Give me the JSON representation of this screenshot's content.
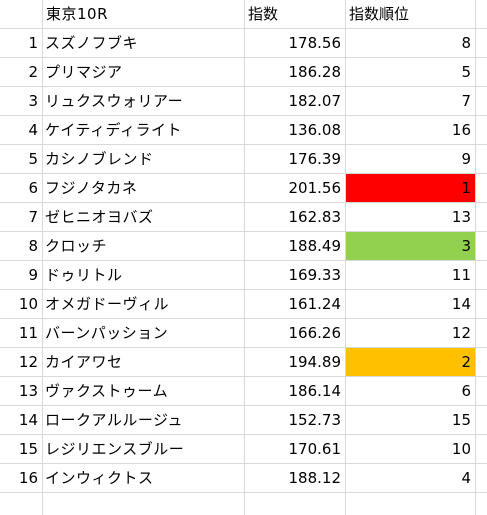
{
  "header": {
    "a": "",
    "b": "東京10R",
    "c": "指数",
    "d": "指数順位"
  },
  "highlight_colors": {
    "rank_1": "#ff0000",
    "rank_2": "#ffc000",
    "rank_3": "#92d050"
  },
  "rows": [
    {
      "no": "1",
      "name": "スズノフブキ",
      "index": "178.56",
      "rank": "8"
    },
    {
      "no": "2",
      "name": "プリマジア",
      "index": "186.28",
      "rank": "5"
    },
    {
      "no": "3",
      "name": "リュクスウォリアー",
      "index": "182.07",
      "rank": "7"
    },
    {
      "no": "4",
      "name": "ケイティディライト",
      "index": "136.08",
      "rank": "16"
    },
    {
      "no": "5",
      "name": "カシノブレンド",
      "index": "176.39",
      "rank": "9"
    },
    {
      "no": "6",
      "name": "フジノタカネ",
      "index": "201.56",
      "rank": "1",
      "fill": "#ff0000"
    },
    {
      "no": "7",
      "name": "ゼヒニオヨバズ",
      "index": "162.83",
      "rank": "13"
    },
    {
      "no": "8",
      "name": "クロッチ",
      "index": "188.49",
      "rank": "3",
      "fill": "#92d050"
    },
    {
      "no": "9",
      "name": "ドゥリトル",
      "index": "169.33",
      "rank": "11"
    },
    {
      "no": "10",
      "name": "オメガドーヴィル",
      "index": "161.24",
      "rank": "14"
    },
    {
      "no": "11",
      "name": "バーンパッション",
      "index": "166.26",
      "rank": "12"
    },
    {
      "no": "12",
      "name": "カイアワセ",
      "index": "194.89",
      "rank": "2",
      "fill": "#ffc000"
    },
    {
      "no": "13",
      "name": "ヴァクストゥーム",
      "index": "186.14",
      "rank": "6"
    },
    {
      "no": "14",
      "name": "ロークアルルージュ",
      "index": "152.73",
      "rank": "15"
    },
    {
      "no": "15",
      "name": "レジリエンスブルー",
      "index": "170.61",
      "rank": "10"
    },
    {
      "no": "16",
      "name": "インウィクトス",
      "index": "188.12",
      "rank": "4"
    }
  ]
}
